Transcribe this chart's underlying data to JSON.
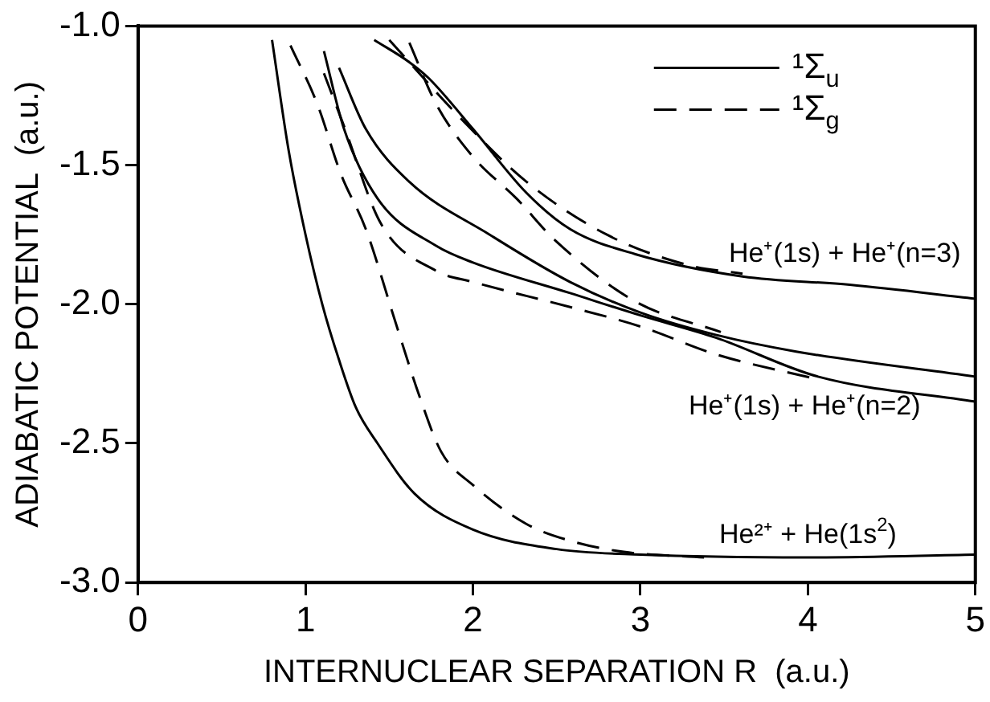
{
  "chart_data": {
    "type": "line",
    "xlabel": "INTERNUCLEAR SEPARATION R  (a.u.)",
    "ylabel": "ADIABATIC POTENTIAL  (a.u.)",
    "xlim": [
      0,
      5
    ],
    "xticks": [
      0,
      1,
      2,
      3,
      4,
      5
    ],
    "ylim": [
      -3,
      -1
    ],
    "yticks": [
      {
        "value": -3,
        "label": "-3.0"
      },
      {
        "value": -2.5,
        "label": "-2.5"
      },
      {
        "value": -2,
        "label": "-2.0"
      },
      {
        "value": -1.5,
        "label": "-1.5"
      },
      {
        "value": -1,
        "label": "-1.0"
      }
    ],
    "grid": false,
    "legend": "top right",
    "marker": "none",
    "series": [
      {
        "name": "¹Σ$_{u}$",
        "color": "#000000",
        "line_style": "solid",
        "x": [
          0.8,
          0.9,
          1.0,
          1.1,
          1.2,
          1.3,
          1.43,
          1.65,
          2.0,
          2.5,
          3.0,
          4.0,
          5.0
        ],
        "values": [
          -1.05,
          -1.45,
          -1.75,
          -2.0,
          -2.2,
          -2.37,
          -2.5,
          -2.68,
          -2.81,
          -2.88,
          -2.9,
          -2.91,
          -2.9
        ]
      },
      {
        "name": "¹Σ$_{g}$",
        "color": "#000000",
        "line_style": "dashed",
        "x": [
          0.91,
          1.07,
          1.21,
          1.36,
          1.54,
          1.68,
          1.81,
          2.0,
          2.32,
          2.58,
          2.9,
          3.38
        ],
        "values": [
          -1.07,
          -1.28,
          -1.53,
          -1.73,
          -2.07,
          -2.33,
          -2.53,
          -2.65,
          -2.79,
          -2.85,
          -2.89,
          -2.91
        ]
      },
      {
        "color": "#000000",
        "line_style": "solid",
        "x": [
          1.11,
          1.23,
          1.43,
          1.78,
          2.0,
          2.58,
          3.0,
          3.45,
          4.06,
          5.0
        ],
        "values": [
          -1.09,
          -1.37,
          -1.62,
          -1.79,
          -1.85,
          -1.96,
          -2.04,
          -2.12,
          -2.26,
          -2.35
        ]
      },
      {
        "color": "#000000",
        "line_style": "solid",
        "x": [
          1.2,
          1.36,
          1.62,
          2.1,
          2.58,
          3.0,
          3.45,
          3.93,
          5.0
        ],
        "values": [
          -1.15,
          -1.37,
          -1.56,
          -1.75,
          -1.92,
          -2.03,
          -2.11,
          -2.17,
          -2.26
        ]
      },
      {
        "color": "#000000",
        "line_style": "dashed",
        "x": [
          1.11,
          1.23,
          1.45,
          1.78,
          2.0,
          2.58,
          3.0,
          3.45,
          4.06
        ],
        "values": [
          -1.17,
          -1.36,
          -1.71,
          -1.88,
          -1.92,
          -2.01,
          -2.08,
          -2.18,
          -2.27
        ]
      },
      {
        "color": "#000000",
        "line_style": "dashed",
        "x": [
          1.62,
          1.78,
          2.0,
          2.26,
          2.49,
          2.97,
          3.48
        ],
        "values": [
          -1.06,
          -1.28,
          -1.47,
          -1.62,
          -1.77,
          -1.99,
          -2.1
        ]
      },
      {
        "color": "#000000",
        "line_style": "solid",
        "x": [
          1.41,
          1.62,
          1.74,
          2.0,
          2.32,
          2.58,
          2.97,
          3.61,
          4.25,
          5.0
        ],
        "values": [
          -1.05,
          -1.13,
          -1.19,
          -1.37,
          -1.6,
          -1.73,
          -1.82,
          -1.9,
          -1.93,
          -1.98
        ]
      },
      {
        "color": "#000000",
        "line_style": "dashed",
        "x": [
          1.5,
          1.94,
          2.32,
          2.8,
          3.29,
          3.61
        ],
        "values": [
          -1.05,
          -1.34,
          -1.56,
          -1.75,
          -1.86,
          -1.89
        ]
      }
    ],
    "annotations": [
      "He⁺(1s) + He⁺(n=3)",
      "He⁺(1s) + He⁺(n=2)",
      "He²⁺ + He(1s$^{2}$)"
    ]
  }
}
